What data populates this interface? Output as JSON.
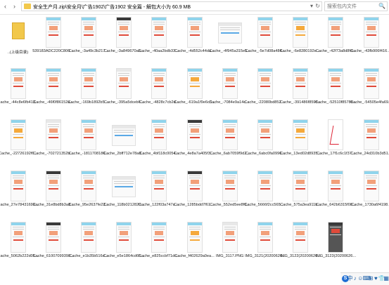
{
  "toolbar": {
    "back": "‹",
    "forward": "›",
    "path": "安全生产月.zip\\安全月\\广告1902\\广告1902 安全篇 - 解包大小为 60.9 MB",
    "dropdown": "▾",
    "refresh": "↻",
    "search_placeholder": "搜索包内文件",
    "search_icon": "🔍"
  },
  "files": [
    {
      "name": "..(上级目录)",
      "thumb": "folder"
    },
    {
      "name": "539183ADC220C8067...",
      "thumb": "blue"
    },
    {
      "name": "Cache_-3a49c3b217...",
      "thumb": "blue"
    },
    {
      "name": "Cache_-3a849670ab...",
      "thumb": "dark"
    },
    {
      "name": "Cache_-40aa2bdb33b...",
      "thumb": "blue"
    },
    {
      "name": "Cache_-4d552c44da...",
      "thumb": "blue"
    },
    {
      "name": "Cache_-4f945a315e5...",
      "thumb": "wide"
    },
    {
      "name": "Cache_-5e7d08a484...",
      "thumb": "blue"
    },
    {
      "name": "Cache_-6e8280192ec...",
      "thumb": "orange"
    },
    {
      "name": "Cache_-42f73a8d8fd...",
      "thumb": "blue"
    },
    {
      "name": "Cache_-43fb906f4166...",
      "thumb": "blue"
    },
    {
      "name": "Cache_-44c8e6fb413...",
      "thumb": "blue"
    },
    {
      "name": "Cache_-46f0f86152a...",
      "thumb": "blue"
    },
    {
      "name": "Cache_-169b1892b51...",
      "thumb": "blue"
    },
    {
      "name": "Cache_-395a5dceb6...",
      "thumb": "white"
    },
    {
      "name": "Cache_-4828c7cb2d...",
      "thumb": "blue"
    },
    {
      "name": "Cache_-619a1f9e6c3...",
      "thumb": "orange"
    },
    {
      "name": "Cache_-7084e9a14c3...",
      "thumb": "blue"
    },
    {
      "name": "Cache_-22080bd852c...",
      "thumb": "blue"
    },
    {
      "name": "Cache_-391486f8598...",
      "thumb": "blue"
    },
    {
      "name": "Cache_-52510f8578b...",
      "thumb": "blue"
    },
    {
      "name": "Cache_-54505e4fa69...",
      "thumb": "blue"
    },
    {
      "name": "Cache_-22726192f6...",
      "thumb": "orange"
    },
    {
      "name": "Cache_-702721352b...",
      "thumb": "white"
    },
    {
      "name": "Cache_-1811708186...",
      "thumb": "blue"
    },
    {
      "name": "Cache_2bff712e78a8...",
      "thumb": "wide"
    },
    {
      "name": "Cache_4bf118c0054...",
      "thumb": "blue"
    },
    {
      "name": "Cache_4e8a7a405f30...",
      "thumb": "dark"
    },
    {
      "name": "Cache_6ab7059f9d2...",
      "thumb": "blue"
    },
    {
      "name": "Cache_6abc0fa0996...",
      "thumb": "blue"
    },
    {
      "name": "Cache_13ed02d8935...",
      "thumb": "orange"
    },
    {
      "name": "Cache_17f1c6c1f37...",
      "thumb": "scribble"
    },
    {
      "name": "Cache_24d310b3d51...",
      "thumb": "blue"
    },
    {
      "name": "Cache_27e78431699...",
      "thumb": "blue"
    },
    {
      "name": "Cache_31e8bd8b3a8...",
      "thumb": "dark"
    },
    {
      "name": "Cache_95e2637fe23...",
      "thumb": "blue"
    },
    {
      "name": "Cache_118b0212820...",
      "thumb": "wide"
    },
    {
      "name": "Cache_122f03a747aa...",
      "thumb": "blue"
    },
    {
      "name": "Cache_1285bdd7f61e...",
      "thumb": "dark"
    },
    {
      "name": "Cache_552ed5ee8f6...",
      "thumb": "blue"
    },
    {
      "name": "Cache_5666f2cc5653...",
      "thumb": "blue"
    },
    {
      "name": "Cache_575a3ea911b...",
      "thumb": "blue"
    },
    {
      "name": "Cache_642b6315f08...",
      "thumb": "blue"
    },
    {
      "name": "Cache_1730a6f4198...",
      "thumb": "blue"
    },
    {
      "name": "Cache_5062b222d05...",
      "thumb": "blue"
    },
    {
      "name": "Cache_61007099398...",
      "thumb": "dark"
    },
    {
      "name": "Cache_e1b35b516d...",
      "thumb": "blue"
    },
    {
      "name": "Cache_e5e1864cd65...",
      "thumb": "blue"
    },
    {
      "name": "Cache_e825ccbf71dc...",
      "thumb": "blue"
    },
    {
      "name": "Cache_f402629a0ea...",
      "thumb": "orange"
    },
    {
      "name": "IMG_3117.PNG",
      "thumb": "white"
    },
    {
      "name": "IMG_3121(20200626...",
      "thumb": "blue"
    },
    {
      "name": "IMG_3122(20200626...",
      "thumb": "blue"
    },
    {
      "name": "IMG_3123(20200626...",
      "thumb": "darkthumb"
    }
  ],
  "tray": [
    "S",
    "中",
    "♪",
    "☺",
    "⌨",
    "⊞",
    "♥",
    "👕",
    "▦"
  ],
  "colors": {
    "folder": "#f2c84b",
    "header_blue": "#8fd4ec",
    "accent_red": "#e04a3a",
    "accent_orange": "#f5a93b"
  }
}
